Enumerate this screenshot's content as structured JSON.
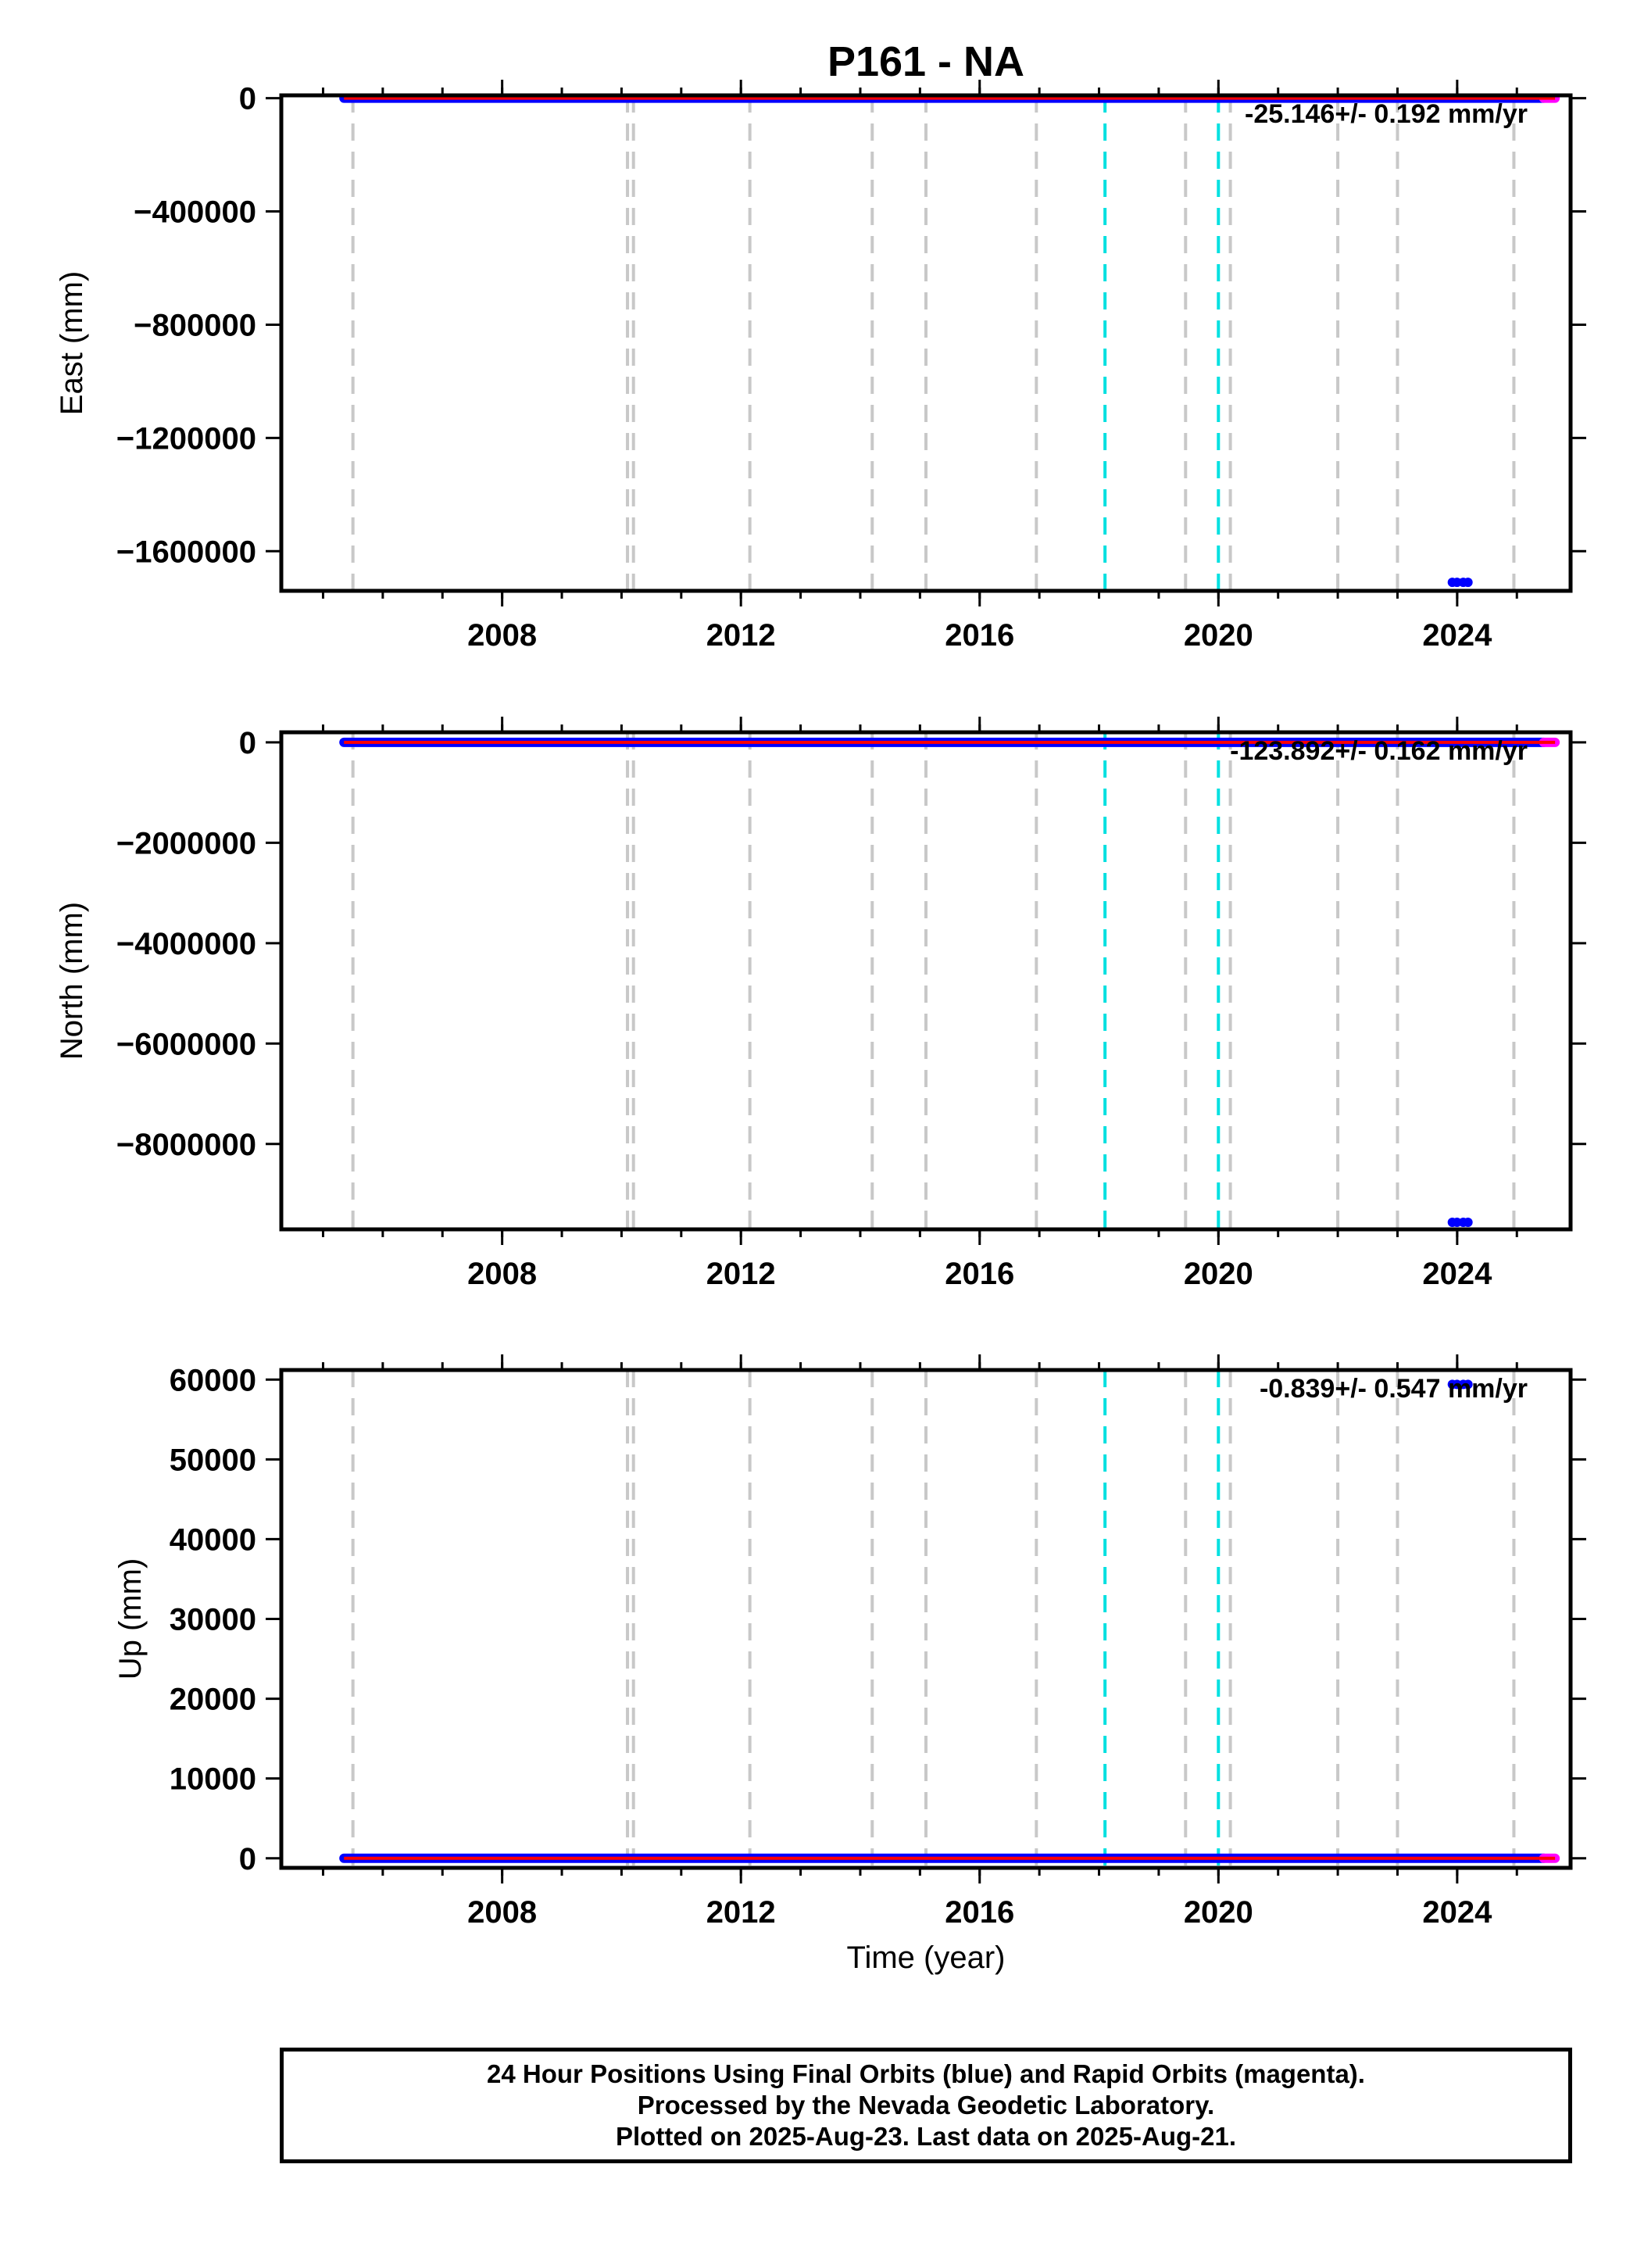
{
  "title": "P161 - NA",
  "xlabel": "Time (year)",
  "caption": {
    "line1": "24 Hour Positions Using Final Orbits (blue) and Rapid Orbits (magenta).",
    "line2": "Processed by the Nevada Geodetic Laboratory.",
    "line3": "Plotted on 2025-Aug-23. Last data on 2025-Aug-21."
  },
  "colors": {
    "final_orbits": "#0000ff",
    "rapid_orbits": "#ff00ff",
    "fit_line": "#ff0000",
    "equipment_change": "#c8c8c8",
    "earthquake": "#00e0e0"
  },
  "chart_data": [
    {
      "type": "scatter",
      "ylabel": "East (mm)",
      "rate_label": "-25.146+/- 0.192 mm/yr",
      "xlim": [
        2004.3,
        2025.9
      ],
      "ylim": [
        -1740000,
        10000
      ],
      "xticks": [
        2008,
        2012,
        2016,
        2020,
        2024
      ],
      "yticks": [
        0,
        -400000,
        -800000,
        -1200000,
        -1600000
      ],
      "series": [
        {
          "name": "Final Orbits",
          "color": "#0000ff",
          "x_range": [
            2005.35,
            2025.45
          ],
          "y": 0
        },
        {
          "name": "Rapid Orbits",
          "color": "#ff00ff",
          "x_range": [
            2025.45,
            2025.64
          ],
          "y": 0
        }
      ],
      "outliers": [
        {
          "x": 2024.05,
          "y": -1710000
        }
      ],
      "fit": {
        "x": [
          2005.35,
          2025.64
        ],
        "y": [
          0,
          0
        ]
      },
      "equipment_changes": [
        2005.5,
        2010.1,
        2010.2,
        2012.15,
        2014.2,
        2015.1,
        2016.95,
        2019.45,
        2020.2,
        2022.0,
        2023.0,
        2024.95
      ],
      "earthquakes": [
        2018.1,
        2020.0
      ]
    },
    {
      "type": "scatter",
      "ylabel": "North (mm)",
      "rate_label": "-123.892+/- 0.162 mm/yr",
      "xlim": [
        2004.3,
        2025.9
      ],
      "ylim": [
        -9700000,
        200000
      ],
      "xticks": [
        2008,
        2012,
        2016,
        2020,
        2024
      ],
      "yticks": [
        0,
        -2000000,
        -4000000,
        -6000000,
        -8000000
      ],
      "series": [
        {
          "name": "Final Orbits",
          "color": "#0000ff",
          "x_range": [
            2005.35,
            2025.45
          ],
          "y": 0
        },
        {
          "name": "Rapid Orbits",
          "color": "#ff00ff",
          "x_range": [
            2025.45,
            2025.64
          ],
          "y": 0
        }
      ],
      "outliers": [
        {
          "x": 2024.05,
          "y": -9560000
        }
      ],
      "fit": {
        "x": [
          2005.35,
          2025.64
        ],
        "y": [
          0,
          0
        ]
      },
      "equipment_changes": [
        2005.5,
        2010.1,
        2010.2,
        2012.15,
        2014.2,
        2015.1,
        2016.95,
        2019.45,
        2020.2,
        2022.0,
        2023.0,
        2024.95
      ],
      "earthquakes": [
        2018.1,
        2020.0
      ]
    },
    {
      "type": "scatter",
      "ylabel": "Up (mm)",
      "rate_label": "-0.839+/- 0.547 mm/yr",
      "xlim": [
        2004.3,
        2025.9
      ],
      "ylim": [
        -1200,
        61200
      ],
      "xticks": [
        2008,
        2012,
        2016,
        2020,
        2024
      ],
      "yticks": [
        0,
        10000,
        20000,
        30000,
        40000,
        50000,
        60000
      ],
      "series": [
        {
          "name": "Final Orbits",
          "color": "#0000ff",
          "x_range": [
            2005.35,
            2025.45
          ],
          "y": 0
        },
        {
          "name": "Rapid Orbits",
          "color": "#ff00ff",
          "x_range": [
            2025.45,
            2025.64
          ],
          "y": 0
        }
      ],
      "outliers": [
        {
          "x": 2024.05,
          "y": 59400
        }
      ],
      "fit": {
        "x": [
          2005.35,
          2025.64
        ],
        "y": [
          0,
          0
        ]
      },
      "equipment_changes": [
        2005.5,
        2010.1,
        2010.2,
        2012.15,
        2014.2,
        2015.1,
        2016.95,
        2019.45,
        2020.2,
        2022.0,
        2023.0,
        2024.95
      ],
      "earthquakes": [
        2018.1,
        2020.0
      ]
    }
  ]
}
